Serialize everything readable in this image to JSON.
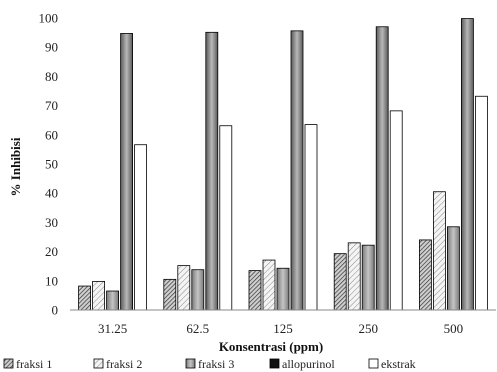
{
  "chart_data": {
    "type": "bar",
    "title": "",
    "xlabel": "Konsentrasi (ppm)",
    "ylabel": "% Inhibisi",
    "ylim": [
      0,
      100
    ],
    "yticks": [
      0,
      10,
      20,
      30,
      40,
      50,
      60,
      70,
      80,
      90,
      100
    ],
    "categories": [
      "31.25",
      "62.5",
      "125",
      "250",
      "500"
    ],
    "series": [
      {
        "name": "fraksi 1",
        "pattern": "dense-diagonal",
        "values": [
          8.2,
          10.5,
          13.5,
          19.3,
          24.0
        ]
      },
      {
        "name": "fraksi 2",
        "pattern": "light-diagonal",
        "values": [
          9.8,
          15.2,
          17.1,
          23.0,
          40.5
        ]
      },
      {
        "name": "fraksi 3",
        "pattern": "gray",
        "values": [
          6.5,
          13.8,
          14.3,
          22.2,
          28.5
        ]
      },
      {
        "name": "allopurinol",
        "pattern": "gradient-gray",
        "values": [
          94.7,
          95.1,
          95.6,
          97.0,
          99.8
        ]
      },
      {
        "name": "ekstrak",
        "pattern": "white",
        "values": [
          56.6,
          63.1,
          63.5,
          68.2,
          73.2
        ]
      }
    ],
    "legend_position": "bottom",
    "grid": false
  }
}
